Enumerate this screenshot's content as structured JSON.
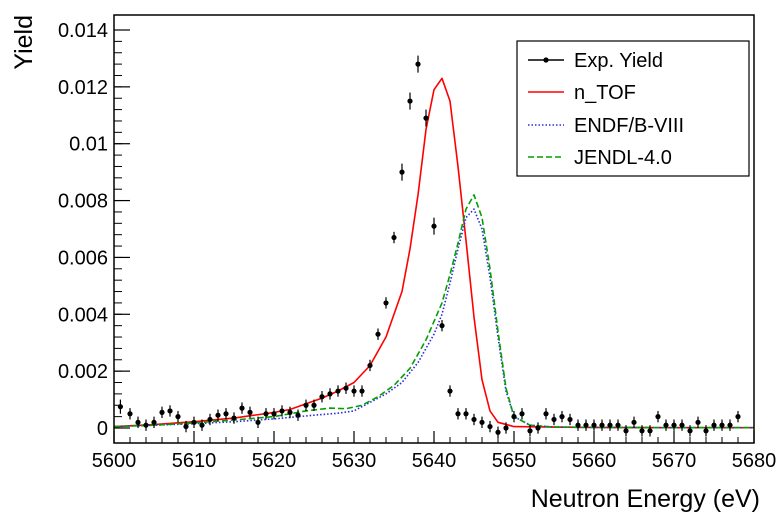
{
  "chart_data": {
    "type": "line",
    "xlabel": "Neutron Energy (eV)",
    "ylabel": "Yield",
    "xlim": [
      5600,
      5680
    ],
    "ylim": [
      0,
      0.0143
    ],
    "x_ticks": [
      5600,
      5610,
      5620,
      5630,
      5640,
      5650,
      5660,
      5670,
      5680
    ],
    "y_ticks": [
      0,
      0.002,
      0.004,
      0.006,
      0.008,
      0.01,
      0.012,
      0.014
    ],
    "y_tick_labels": [
      "0",
      "0.002",
      "0.004",
      "0.006",
      "0.008",
      "0.01",
      "0.012",
      "0.014"
    ],
    "grid": false,
    "legend_position": "top-right",
    "series": [
      {
        "name": "Exp. Yield",
        "kind": "points-with-errorbars",
        "color": "#000000",
        "x": [
          5600.8,
          5602.0,
          5603.0,
          5604.0,
          5605.0,
          5606.0,
          5607.0,
          5608.0,
          5609.0,
          5610.0,
          5611.0,
          5612.0,
          5613.0,
          5614.0,
          5615.0,
          5616.0,
          5617.0,
          5618.0,
          5619.0,
          5620.0,
          5621.0,
          5622.0,
          5623.0,
          5624.0,
          5625.0,
          5626.0,
          5627.0,
          5628.0,
          5629.0,
          5630.0,
          5631.0,
          5632.0,
          5633.0,
          5634.0,
          5635.0,
          5636.0,
          5637.0,
          5638.0,
          5639.0,
          5640.0,
          5641.0,
          5642.0,
          5643.0,
          5644.0,
          5645.0,
          5646.0,
          5647.0,
          5648.0,
          5649.0,
          5650.0,
          5651.0,
          5652.0,
          5653.0,
          5654.0,
          5655.0,
          5656.0,
          5657.0,
          5658.0,
          5659.0,
          5660.0,
          5661.0,
          5662.0,
          5663.0,
          5664.0,
          5665.0,
          5666.0,
          5667.0,
          5668.0,
          5669.0,
          5670.0,
          5671.0,
          5672.0,
          5673.0,
          5674.0,
          5675.0,
          5676.0,
          5677.0,
          5678.0
        ],
        "y": [
          0.00075,
          0.0005,
          0.0002,
          0.0001,
          0.0002,
          0.00055,
          0.0006,
          0.0004,
          5e-05,
          0.0002,
          0.0001,
          0.0003,
          0.00045,
          0.0005,
          0.00035,
          0.0007,
          0.00055,
          0.0002,
          0.0005,
          0.0005,
          0.0006,
          0.00055,
          0.00045,
          0.0008,
          0.0008,
          0.0011,
          0.0012,
          0.0013,
          0.0014,
          0.0013,
          0.0013,
          0.0022,
          0.0033,
          0.0044,
          0.0067,
          0.009,
          0.0115,
          0.0128,
          0.0109,
          0.0071,
          0.0036,
          0.0013,
          0.0005,
          0.0005,
          0.0003,
          0.0002,
          5e-05,
          -0.00015,
          0.0,
          0.0004,
          0.0005,
          -0.0001,
          0.0,
          0.0005,
          0.0003,
          0.0004,
          0.0003,
          0.0001,
          0.0001,
          0.0001,
          0.0001,
          0.0001,
          0.0001,
          -0.0001,
          0.0002,
          -0.0001,
          -0.0001,
          0.0004,
          0.0001,
          0.0001,
          0.0001,
          -0.0001,
          0.0002,
          -0.0001,
          0.0001,
          0.0001,
          0.0001,
          0.0004
        ],
        "yerr": [
          0.00025,
          0.0002,
          0.0002,
          0.0002,
          0.0002,
          0.0002,
          0.0002,
          0.0002,
          0.0002,
          0.0002,
          0.0002,
          0.0002,
          0.0002,
          0.0002,
          0.0002,
          0.0002,
          0.0002,
          0.0002,
          0.0002,
          0.0002,
          0.0002,
          0.0002,
          0.0002,
          0.0002,
          0.0002,
          0.0002,
          0.0002,
          0.0002,
          0.0002,
          0.0002,
          0.0002,
          0.0002,
          0.0002,
          0.0002,
          0.0002,
          0.0003,
          0.0003,
          0.0003,
          0.0003,
          0.0003,
          0.0002,
          0.0002,
          0.0002,
          0.0002,
          0.0002,
          0.0002,
          0.0002,
          0.0002,
          0.0002,
          0.0002,
          0.0002,
          0.0002,
          0.0002,
          0.0002,
          0.0002,
          0.0002,
          0.0002,
          0.0002,
          0.0002,
          0.0002,
          0.0002,
          0.0002,
          0.0002,
          0.0002,
          0.0002,
          0.0002,
          0.0002,
          0.0002,
          0.0002,
          0.0002,
          0.0002,
          0.0002,
          0.0002,
          0.0002,
          0.0002,
          0.0002,
          0.0002,
          0.0002
        ]
      },
      {
        "name": "n_TOF",
        "kind": "line",
        "color": "#ff0000",
        "line_style": "solid",
        "x": [
          5600,
          5605,
          5610,
          5615,
          5620,
          5622,
          5624,
          5626,
          5628,
          5630,
          5632,
          5634,
          5636,
          5637,
          5638,
          5639,
          5640,
          5641,
          5642,
          5643,
          5644,
          5645,
          5646,
          5647,
          5648,
          5650,
          5655,
          5660,
          5670,
          5680
        ],
        "y": [
          5e-05,
          0.00012,
          0.00022,
          0.00035,
          0.00055,
          0.00065,
          0.00085,
          0.00105,
          0.0013,
          0.0016,
          0.0022,
          0.0032,
          0.0048,
          0.0063,
          0.0082,
          0.0105,
          0.0119,
          0.0123,
          0.0115,
          0.0092,
          0.0066,
          0.0039,
          0.0017,
          0.0006,
          0.0002,
          5e-05,
          3e-05,
          2e-05,
          1e-05,
          1e-05
        ]
      },
      {
        "name": "ENDF/B-VIII",
        "kind": "line",
        "color": "#2a2adf",
        "line_style": "dotted",
        "x": [
          5600,
          5605,
          5610,
          5615,
          5620,
          5625,
          5628,
          5630,
          5632,
          5634,
          5636,
          5638,
          5640,
          5641,
          5642,
          5643,
          5644,
          5645,
          5646,
          5647,
          5648,
          5649,
          5650,
          5652,
          5655,
          5660,
          5670,
          5680
        ],
        "y": [
          5e-05,
          0.0001,
          0.00015,
          0.00022,
          0.00032,
          0.00045,
          0.00052,
          0.0006,
          0.0009,
          0.0012,
          0.0016,
          0.0023,
          0.0033,
          0.004,
          0.0051,
          0.0063,
          0.0074,
          0.0077,
          0.007,
          0.0053,
          0.0032,
          0.0013,
          0.0004,
          0.0001,
          3e-05,
          2e-05,
          1e-05,
          1e-05
        ]
      },
      {
        "name": "JENDL-4.0",
        "kind": "line",
        "color": "#00a000",
        "line_style": "dashed",
        "x": [
          5600,
          5605,
          5610,
          5615,
          5620,
          5624,
          5627,
          5629,
          5631,
          5633,
          5635,
          5637,
          5639,
          5641,
          5642,
          5643,
          5644,
          5645,
          5646,
          5647,
          5648,
          5649,
          5650,
          5652,
          5655,
          5660,
          5670,
          5680
        ],
        "y": [
          5e-05,
          0.0001,
          0.00018,
          0.00028,
          0.0004,
          0.0006,
          0.0007,
          0.00068,
          0.0008,
          0.0011,
          0.0015,
          0.0021,
          0.0031,
          0.0044,
          0.0054,
          0.0065,
          0.0077,
          0.0082,
          0.0074,
          0.0056,
          0.0034,
          0.0014,
          0.0004,
          0.0001,
          3e-05,
          2e-05,
          1e-05,
          1e-05
        ]
      }
    ]
  }
}
